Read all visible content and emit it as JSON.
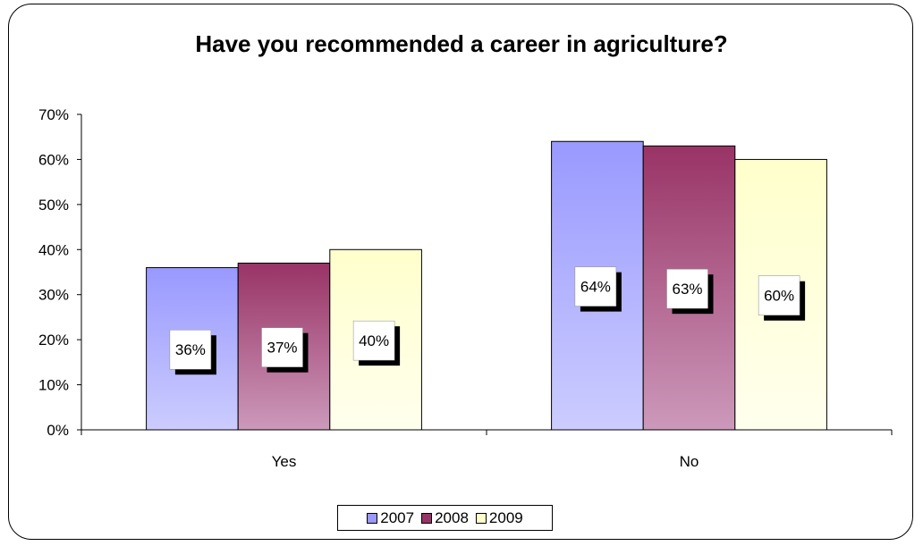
{
  "chart_data": {
    "type": "bar",
    "title": "Have you recommended a career in agriculture?",
    "xlabel": "",
    "ylabel": "",
    "categories": [
      "Yes",
      "No"
    ],
    "series": [
      {
        "name": "2007",
        "values": [
          36,
          64
        ],
        "labels": [
          "36%",
          "64%"
        ],
        "color": "#9999ff",
        "light": "#ccccff"
      },
      {
        "name": "2008",
        "values": [
          37,
          63
        ],
        "labels": [
          "37%",
          "63%"
        ],
        "color": "#993366",
        "light": "#cc99bb"
      },
      {
        "name": "2009",
        "values": [
          40,
          60
        ],
        "labels": [
          "40%",
          "60%"
        ],
        "color": "#ffffcc",
        "light": "#ffffee"
      }
    ],
    "ylim": [
      0,
      70
    ],
    "yticks": [
      "0%",
      "10%",
      "20%",
      "30%",
      "40%",
      "50%",
      "60%",
      "70%"
    ],
    "grid": false,
    "legend_position": "bottom"
  }
}
